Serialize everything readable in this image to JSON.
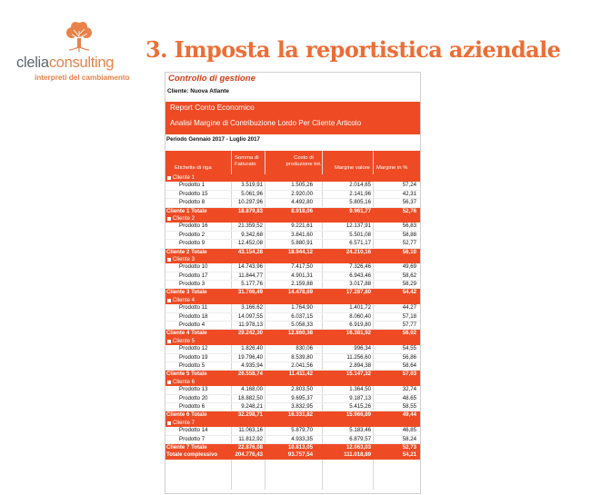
{
  "logo": {
    "name_a": "clelia",
    "name_b": "consulting",
    "tagline": "interpreti del cambiamento"
  },
  "headline": "3. Imposta la reportistica aziendale",
  "report": {
    "title": "Controllo di gestione",
    "client_label": "Cliente: Nuova Atlante",
    "band_title": "Report Conto Economico",
    "band_subtitle": "Analisi Margine di Contribuzione Lordo Per Cliente Articolo",
    "period": "Periodo Gennaio 2017 - Luglio 2017",
    "columns": {
      "label": "Etichette di riga",
      "col1": "Somma di Fatturato",
      "col2": "Costo di produzione tot.",
      "col3": "Margine valore",
      "col4": "Margine in %"
    },
    "groups": [
      {
        "name": "Cliente 1",
        "rows": [
          [
            "Prodotto 1",
            "3.519,91",
            "1.505,26",
            "2.014,65",
            "57,24"
          ],
          [
            "Prodotto 15",
            "5.061,96",
            "2.920,00",
            "2.141,96",
            "42,31"
          ],
          [
            "Prodotto 8",
            "10.297,96",
            "4.492,80",
            "5.805,16",
            "56,37"
          ]
        ],
        "total": [
          "Cliente 1 Totale",
          "18.879,83",
          "8.918,06",
          "9.961,77",
          "52,76"
        ]
      },
      {
        "name": "Cliente 2",
        "rows": [
          [
            "Prodotto 16",
            "21.359,52",
            "9.221,61",
            "12.137,91",
            "56,83"
          ],
          [
            "Prodotto 2",
            "9.342,68",
            "3.841,60",
            "5.501,08",
            "58,88"
          ],
          [
            "Prodotto 9",
            "12.452,08",
            "5.880,91",
            "6.571,17",
            "52,77"
          ]
        ],
        "total": [
          "Cliente 2 Totale",
          "43.154,28",
          "18.944,12",
          "24.210,16",
          "56,10"
        ]
      },
      {
        "name": "Cliente 3",
        "rows": [
          [
            "Prodotto 10",
            "14.743,96",
            "7.417,50",
            "7.326,46",
            "49,69"
          ],
          [
            "Prodotto 17",
            "11.844,77",
            "4.901,31",
            "6.943,46",
            "58,62"
          ],
          [
            "Prodotto 3",
            "5.177,76",
            "2.159,88",
            "3.017,88",
            "58,29"
          ]
        ],
        "total": [
          "Cliente 3 Totale",
          "31.766,49",
          "14.478,69",
          "17.287,80",
          "54,42"
        ]
      },
      {
        "name": "Cliente 4",
        "rows": [
          [
            "Prodotto 11",
            "3.166,62",
            "1.764,90",
            "1.401,72",
            "44,27"
          ],
          [
            "Prodotto 18",
            "14.097,55",
            "6.037,15",
            "8.060,40",
            "57,18"
          ],
          [
            "Prodotto 4",
            "11.978,13",
            "5.058,33",
            "6.919,80",
            "57,77"
          ]
        ],
        "total": [
          "Cliente 4 Totale",
          "29.242,30",
          "12.860,38",
          "16.381,92",
          "56,02"
        ]
      },
      {
        "name": "Cliente 5",
        "rows": [
          [
            "Prodotto 12",
            "1.826,40",
            "830,06",
            "996,34",
            "54,55"
          ],
          [
            "Prodotto 19",
            "19.796,40",
            "8.539,80",
            "11.256,60",
            "56,86"
          ],
          [
            "Prodotto 5",
            "4.935,94",
            "2.041,56",
            "2.894,38",
            "58,64"
          ]
        ],
        "total": [
          "Cliente 5 Totale",
          "26.558,74",
          "11.411,42",
          "15.147,32",
          "57,03"
        ]
      },
      {
        "name": "Cliente 6",
        "rows": [
          [
            "Prodotto 13",
            "4.168,00",
            "2.803,50",
            "1.364,50",
            "32,74"
          ],
          [
            "Prodotto 20",
            "18.882,50",
            "9.695,37",
            "9.187,13",
            "48,65"
          ],
          [
            "Prodotto 6",
            "9.248,21",
            "3.832,95",
            "5.415,26",
            "58,55"
          ]
        ],
        "total": [
          "Cliente 6 Totale",
          "32.298,71",
          "16.331,82",
          "15.966,89",
          "49,44"
        ]
      },
      {
        "name": "Cliente 7",
        "rows": [
          [
            "Prodotto 14",
            "11.063,16",
            "5.879,70",
            "5.183,46",
            "46,85"
          ],
          [
            "Prodotto 7",
            "11.812,92",
            "4.933,35",
            "6.879,57",
            "58,24"
          ]
        ],
        "total": [
          "Cliente 7 Totale",
          "22.876,08",
          "10.813,05",
          "12.063,03",
          "52,73"
        ]
      }
    ],
    "grand_total": [
      "Totale complessivo",
      "204.776,43",
      "93.757,54",
      "111.018,89",
      "54,21"
    ]
  },
  "colors": {
    "accent": "#ee4b24",
    "headline": "#ec6e35",
    "logo_orange": "#e8824a",
    "logo_gray": "#5c6670"
  }
}
